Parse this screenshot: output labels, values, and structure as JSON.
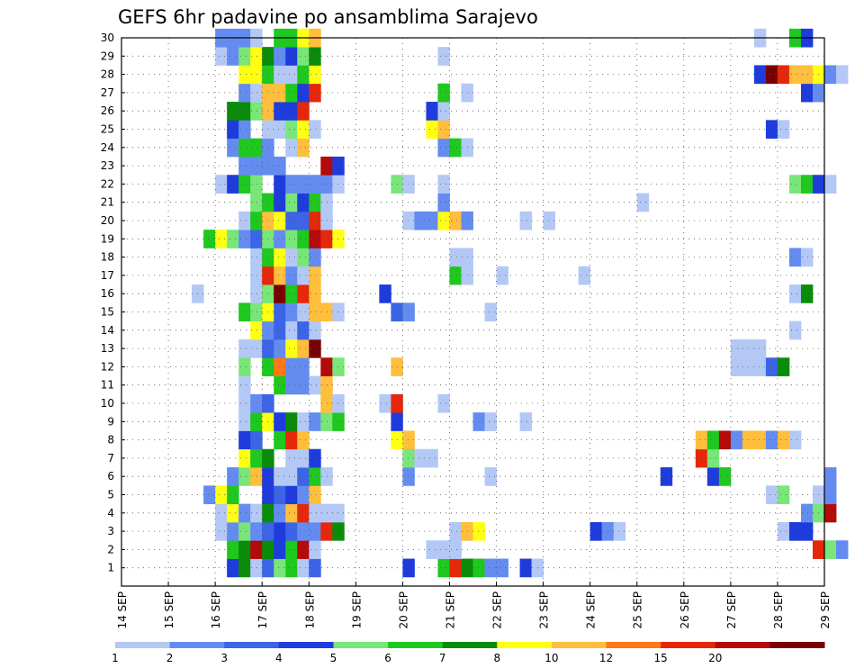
{
  "chart_data": {
    "type": "heatmap",
    "title": "GEFS 6hr padavine po ansamblima Sarajevo",
    "x_ticks": [
      "14 SEP",
      "15 SEP",
      "16 SEP",
      "17 SEP",
      "18 SEP",
      "19 SEP",
      "20 SEP",
      "21 SEP",
      "22 SEP",
      "23 SEP",
      "24 SEP",
      "25 SEP",
      "26 SEP",
      "27 SEP",
      "28 SEP",
      "29 SEP"
    ],
    "y_ticks": [
      "1",
      "2",
      "3",
      "4",
      "5",
      "6",
      "7",
      "8",
      "9",
      "10",
      "11",
      "12",
      "13",
      "14",
      "15",
      "16",
      "17",
      "18",
      "19",
      "20",
      "21",
      "22",
      "23",
      "24",
      "25",
      "26",
      "27",
      "28",
      "29",
      "30"
    ],
    "x_range": [
      "14 SEP",
      "29 SEP"
    ],
    "y_range": [
      0,
      30
    ],
    "step_hours": 6,
    "grid": true,
    "legend_position": "bottom",
    "colorbar": {
      "labels": [
        "1",
        "2",
        "3",
        "4",
        "5",
        "6",
        "7",
        "8",
        "10",
        "12",
        "15",
        "20"
      ],
      "colors": [
        "#b4c8f5",
        "#648cf0",
        "#3c64e6",
        "#1e3cdc",
        "#78e678",
        "#1ec81e",
        "#0a8c0a",
        "#ffff14",
        "#ffbe3c",
        "#ff7814",
        "#e6280a",
        "#b40a0a",
        "#780000"
      ]
    },
    "palette_levels": {
      "L": "1-2",
      "M": "2-3",
      "B": "3-4",
      "N": "4-5",
      "g": "5-6",
      "G": "6-7",
      "D": "7-8",
      "Y": "8-10",
      "O": "10-12",
      "o": "12-15",
      "R": "15-20",
      "r": "20-30",
      "K": ">30"
    },
    "members": {
      "1": "16 SEP 06 N; 16 SEP 12 D; 16 SEP 18 L; 17 SEP 00 B; 17 SEP 06 g; 17 SEP 12 G; 17 SEP 18 L; 18 SEP 00 B; 20 SEP 00 N; 20 SEP 18 G; 21 SEP 00 R; 21 SEP 06 D; 21 SEP 12 G; 21 SEP 18 M; 22 SEP 00 M; 22 SEP 12 N; 22 SEP 18 L",
      "2": "16 SEP 06 G; 16 SEP 12 D; 16 SEP 18 r; 17 SEP 00 D; 17 SEP 06 N; 17 SEP 12 G; 17 SEP 18 r; 18 SEP 00 L; 20 SEP 12 L; 20 SEP 18 L; 21 SEP 00 L; 28 SEP 18 R; 29 SEP 00 g; 29 SEP 06 M",
      "3": "16 SEP 00 L; 16 SEP 06 M; 16 SEP 12 g; 16 SEP 18 M; 17 SEP 00 B; 17 SEP 06 N; 17 SEP 12 B; 17 SEP 18 M; 18 SEP 00 M; 18 SEP 06 R; 18 SEP 12 D; 21 SEP 00 L; 21 SEP 06 O; 21 SEP 12 Y; 24 SEP 00 N; 24 SEP 06 M; 24 SEP 12 L; 28 SEP 00 L; 28 SEP 06 N; 28 SEP 12 N",
      "4": "16 SEP 00 L; 16 SEP 06 Y; 16 SEP 12 M; 16 SEP 18 L; 17 SEP 00 D; 17 SEP 06 M; 17 SEP 12 O; 17 SEP 18 R; 18 SEP 00 L; 18 SEP 06 L; 18 SEP 12 L; 28 SEP 12 M; 28 SEP 18 g; 29 SEP 00 r",
      "5": "15 SEP 18 M; 16 SEP 00 Y; 16 SEP 06 G; 17 SEP 00 N; 17 SEP 06 B; 17 SEP 12 N; 17 SEP 18 M; 18 SEP 00 O; 27 SEP 18 L; 28 SEP 00 g; 28 SEP 18 L; 29 SEP 00 M",
      "6": "16 SEP 06 M; 16 SEP 12 g; 16 SEP 18 O; 17 SEP 00 N; 17 SEP 06 L; 17 SEP 12 L; 17 SEP 18 B; 18 SEP 00 G; 18 SEP 06 L; 20 SEP 00 M; 21 SEP 18 L; 25 SEP 12 N; 26 SEP 12 N; 26 SEP 18 G; 29 SEP 00 M",
      "7": "16 SEP 12 Y; 16 SEP 18 G; 17 SEP 00 D; 17 SEP 12 L; 17 SEP 18 L; 18 SEP 00 N; 20 SEP 00 g; 20 SEP 06 L; 20 SEP 12 L; 26 SEP 06 R; 26 SEP 12 g",
      "8": "16 SEP 12 N; 16 SEP 18 B; 17 SEP 06 G; 17 SEP 12 R; 17 SEP 18 O; 19 SEP 18 Y; 20 SEP 00 O; 26 SEP 06 O; 26 SEP 12 G; 26 SEP 18 r; 27 SEP 00 M; 27 SEP 06 O; 27 SEP 12 O; 27 SEP 18 M; 28 SEP 00 O; 28 SEP 06 L",
      "9": "16 SEP 12 L; 16 SEP 18 G; 17 SEP 00 Y; 17 SEP 06 N; 17 SEP 12 D; 17 SEP 18 L; 18 SEP 00 M; 18 SEP 06 g; 18 SEP 12 G; 19 SEP 18 N; 21 SEP 12 M; 21 SEP 18 L; 22 SEP 12 L",
      "10": "16 SEP 12 L; 16 SEP 18 M; 17 SEP 00 B; 18 SEP 06 O; 18 SEP 12 L; 19 SEP 12 L; 19 SEP 18 R; 20 SEP 18 L",
      "11": "16 SEP 12 L; 17 SEP 06 G; 17 SEP 12 M; 17 SEP 18 M; 18 SEP 00 L; 18 SEP 06 O",
      "12": "16 SEP 12 g; 17 SEP 00 G; 17 SEP 06 o; 17 SEP 12 M; 17 SEP 18 M; 18 SEP 06 r; 18 SEP 12 g; 19 SEP 18 O; 27 SEP 00 L; 27 SEP 06 L; 27 SEP 12 L; 27 SEP 18 B; 28 SEP 00 D",
      "13": "16 SEP 12 L; 16 SEP 18 L; 17 SEP 00 B; 17 SEP 06 M; 17 SEP 12 Y; 17 SEP 18 O; 18 SEP 00 K; 27 SEP 00 L; 27 SEP 06 L; 27 SEP 12 L",
      "14": "16 SEP 18 Y; 17 SEP 00 M; 17 SEP 06 B; 17 SEP 12 L; 17 SEP 18 B; 18 SEP 00 L; 28 SEP 06 L",
      "15": "16 SEP 12 G; 16 SEP 18 g; 17 SEP 00 Y; 17 SEP 06 B; 17 SEP 12 M; 17 SEP 18 L; 18 SEP 00 O; 18 SEP 06 O; 18 SEP 12 L; 19 SEP 18 B; 20 SEP 00 M; 21 SEP 18 L",
      "16": "15 SEP 12 L; 16 SEP 18 L; 17 SEP 00 g; 17 SEP 06 K; 17 SEP 12 G; 17 SEP 18 R; 18 SEP 00 O; 19 SEP 12 N; 28 SEP 06 L; 28 SEP 12 D",
      "17": "16 SEP 18 L; 17 SEP 00 R; 17 SEP 06 O; 17 SEP 12 M; 17 SEP 18 L; 18 SEP 00 O; 21 SEP 00 G; 21 SEP 06 L; 22 SEP 00 L; 23 SEP 18 L",
      "18": "16 SEP 18 L; 17 SEP 00 G; 17 SEP 06 Y; 17 SEP 12 L; 17 SEP 18 g; 18 SEP 00 M; 21 SEP 00 L; 21 SEP 06 L; 28 SEP 06 M; 28 SEP 12 L",
      "19": "15 SEP 18 G; 16 SEP 00 Y; 16 SEP 06 g; 16 SEP 12 M; 16 SEP 18 B; 17 SEP 00 g; 17 SEP 06 M; 17 SEP 12 g; 17 SEP 18 G; 18 SEP 00 r; 18 SEP 06 R; 18 SEP 12 Y",
      "20": "16 SEP 12 L; 16 SEP 18 G; 17 SEP 00 O; 17 SEP 06 Y; 17 SEP 12 B; 17 SEP 18 B; 18 SEP 00 R; 18 SEP 06 L; 20 SEP 00 L; 20 SEP 06 M; 20 SEP 12 M; 20 SEP 18 Y; 21 SEP 00 O; 21 SEP 06 M; 22 SEP 12 L; 23 SEP 00 L",
      "21": "16 SEP 18 g; 17 SEP 00 G; 17 SEP 06 N; 17 SEP 12 g; 17 SEP 18 N; 18 SEP 00 G; 18 SEP 06 L; 20 SEP 18 M; 25 SEP 00 L",
      "22": "16 SEP 00 L; 16 SEP 06 N; 16 SEP 12 G; 16 SEP 18 g; 17 SEP 06 N; 17 SEP 12 M; 17 SEP 18 M; 18 SEP 00 M; 18 SEP 06 M; 18 SEP 12 L; 19 SEP 18 g; 20 SEP 00 L; 20 SEP 18 L; 28 SEP 06 g; 28 SEP 12 G; 28 SEP 18 N; 29 SEP 00 L",
      "23": "16 SEP 12 M; 16 SEP 18 M; 17 SEP 00 M; 17 SEP 06 M; 18 SEP 06 r; 18 SEP 12 N",
      "24": "16 SEP 06 M; 16 SEP 12 G; 16 SEP 18 G; 17 SEP 00 M; 17 SEP 12 L; 17 SEP 18 O; 20 SEP 18 M; 21 SEP 00 G; 21 SEP 06 L",
      "25": "16 SEP 06 N; 16 SEP 12 M; 17 SEP 00 L; 17 SEP 06 L; 17 SEP 12 g; 17 SEP 18 Y; 18 SEP 00 L; 20 SEP 12 Y; 20 SEP 18 O; 27 SEP 18 N; 28 SEP 00 L",
      "26": "16 SEP 06 D; 16 SEP 12 D; 16 SEP 18 g; 17 SEP 00 O; 17 SEP 06 N; 17 SEP 12 N; 17 SEP 18 R; 20 SEP 12 N; 20 SEP 18 L",
      "27": "16 SEP 12 M; 16 SEP 18 L; 17 SEP 00 O; 17 SEP 06 O; 17 SEP 12 G; 17 SEP 18 N; 18 SEP 00 R; 20 SEP 18 G; 21 SEP 06 L; 28 SEP 12 N; 28 SEP 18 M",
      "28": "16 SEP 12 Y; 16 SEP 18 Y; 17 SEP 00 G; 17 SEP 06 L; 17 SEP 12 L; 17 SEP 18 G; 18 SEP 00 Y; 27 SEP 12 N; 27 SEP 18 K; 28 SEP 00 R; 28 SEP 06 O; 28 SEP 12 O; 28 SEP 18 Y; 29 SEP 00 M; 29 SEP 06 L",
      "29": "16 SEP 00 L; 16 SEP 06 M; 16 SEP 12 g; 16 SEP 18 Y; 17 SEP 00 D; 17 SEP 06 M; 17 SEP 12 N; 17 SEP 18 g; 18 SEP 00 D; 20 SEP 18 L",
      "30": "16 SEP 00 M; 16 SEP 06 M; 16 SEP 12 M; 16 SEP 18 L; 17 SEP 06 G; 17 SEP 12 G; 17 SEP 18 Y; 18 SEP 00 O; 27 SEP 12 L; 28 SEP 06 G; 28 SEP 12 N"
    }
  }
}
